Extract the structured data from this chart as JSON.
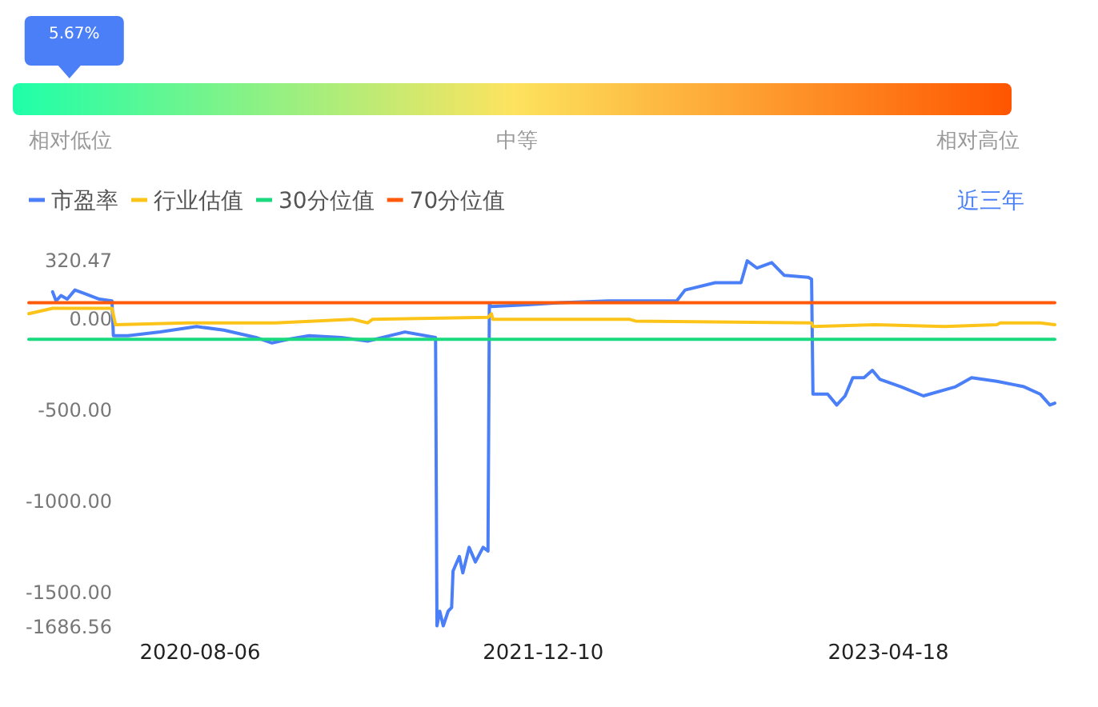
{
  "chart_data": [
    {
      "type": "other",
      "values": [
        5.67
      ],
      "value_labels": [
        "5.67%"
      ],
      "annotations": [
        "相对低位",
        "中等",
        "相对高位"
      ]
    },
    {
      "type": "line",
      "legend": "top left",
      "annotations": [
        "近三年"
      ],
      "ylim": [
        -1686.56,
        320.47
      ],
      "yticks": [
        320.47,
        {
          "value": 0,
          "label": "0.00"
        },
        {
          "value": -500,
          "label": "-500.00"
        },
        {
          "value": -1000,
          "label": "-1000.00"
        },
        {
          "value": -1500,
          "label": "-1500.00"
        },
        -1686.56
      ],
      "xlim": [
        "2019-12-05",
        "2023-12-12"
      ],
      "xticks": [
        "2020-08-06",
        "2021-12-10",
        "2023-04-18"
      ],
      "series": [
        {
          "name": "市盈率",
          "color": "#4a7ff7",
          "x": [
            "2020-01-08",
            "2020-01-13",
            "2020-01-20",
            "2020-01-29",
            "2020-02-09",
            "2020-02-23",
            "2020-03-15",
            "2020-04-02",
            "2020-04-04",
            "2020-04-25",
            "2020-06-10",
            "2020-08-01",
            "2020-09-09",
            "2020-10-25",
            "2020-11-17",
            "2020-12-10",
            "2021-01-09",
            "2021-02-24",
            "2021-04-03",
            "2021-05-26",
            "2021-07-09",
            "2021-07-11",
            "2021-07-15",
            "2021-07-20",
            "2021-07-27",
            "2021-08-01",
            "2021-08-03",
            "2021-08-12",
            "2021-08-17",
            "2021-08-26",
            "2021-09-04",
            "2021-09-15",
            "2021-09-22",
            "2021-09-24",
            "2021-09-27",
            "2021-11-18",
            "2022-01-03",
            "2022-03-13",
            "2022-06-19",
            "2022-07-01",
            "2022-08-13",
            "2022-09-19",
            "2022-09-28",
            "2022-10-12",
            "2022-11-02",
            "2022-11-20",
            "2022-12-24",
            "2022-12-29",
            "2022-12-31",
            "2023-01-21",
            "2023-02-03",
            "2023-02-15",
            "2023-02-26",
            "2023-03-14",
            "2023-03-26",
            "2023-04-06",
            "2023-05-06",
            "2023-06-07",
            "2023-07-23",
            "2023-08-15",
            "2023-09-20",
            "2023-10-29",
            "2023-11-21",
            "2023-12-05",
            "2023-12-12"
          ],
          "values": [
            150,
            100,
            130,
            110,
            160,
            140,
            110,
            100,
            -90,
            -90,
            -70,
            -40,
            -60,
            -100,
            -130,
            -110,
            -90,
            -100,
            -120,
            -70,
            -100,
            -1680,
            -1600,
            -1680,
            -1600,
            -1580,
            -1380,
            -1300,
            -1390,
            -1250,
            -1330,
            -1250,
            -1270,
            80,
            70,
            80,
            90,
            100,
            100,
            160,
            200,
            200,
            320,
            280,
            310,
            240,
            230,
            220,
            -410,
            -410,
            -470,
            -420,
            -320,
            -320,
            -280,
            -330,
            -370,
            -420,
            -370,
            -320,
            -340,
            -370,
            -410,
            -470,
            -460
          ]
        },
        {
          "name": "行业估值",
          "color": "#fcc419",
          "x": [
            "2019-12-05",
            "2020-01-08",
            "2020-04-02",
            "2020-04-07",
            "2020-07-19",
            "2020-11-22",
            "2021-03-12",
            "2021-04-03",
            "2021-04-10",
            "2021-09-22",
            "2021-09-27",
            "2021-09-29",
            "2022-01-03",
            "2022-04-12",
            "2022-04-21",
            "2022-12-29",
            "2022-12-31",
            "2023-03-30",
            "2023-07-07",
            "2023-09-20",
            "2023-09-25",
            "2023-11-21",
            "2023-12-12"
          ],
          "values": [
            30,
            60,
            60,
            -30,
            -20,
            -20,
            0,
            -20,
            0,
            10,
            30,
            0,
            0,
            0,
            -10,
            -20,
            -40,
            -30,
            -40,
            -30,
            -20,
            -20,
            -30
          ]
        },
        {
          "name": "30分位值",
          "color": "#1bd97f",
          "x": [
            "2019-12-05",
            "2023-12-12"
          ],
          "values": [
            -110,
            -110
          ]
        },
        {
          "name": "70分位值",
          "color": "#ff5a0a",
          "x": [
            "2019-12-05",
            "2023-12-12"
          ],
          "values": [
            90,
            90
          ]
        }
      ]
    }
  ]
}
